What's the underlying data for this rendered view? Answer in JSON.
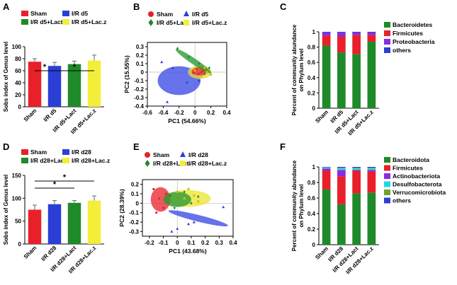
{
  "colors": {
    "red": "#e8202a",
    "blue": "#2b3fd6",
    "green": "#1f8a2a",
    "yellow": "#f2ee3a",
    "purple": "#8a2be2",
    "cyan": "#22d6e8",
    "lime": "#6aa62a",
    "ellipse_blue": "#4b5be6"
  },
  "chart_data": [
    {
      "panel": "A",
      "type": "bar",
      "ylabel": "Sobs index of Genus level",
      "ylim": [
        0,
        100
      ],
      "yticks": [
        0,
        20,
        40,
        60,
        80,
        100
      ],
      "categories": [
        "Sham",
        "I/R d5",
        "I/R d5+Lact",
        "I/R d5+Lac.z"
      ],
      "values": [
        75,
        68,
        71,
        77
      ],
      "errors": [
        5,
        6,
        5,
        9
      ],
      "legend": [
        "Sham",
        "I/R d5",
        "I/R d5+Lact",
        "I/R d5+Lac.z"
      ],
      "significance": [
        {
          "from": 0,
          "to": 1,
          "label": "*"
        },
        {
          "from": 1,
          "to": 3,
          "label": "*"
        }
      ]
    },
    {
      "panel": "B",
      "type": "scatter",
      "xlabel": "PC1 (54.66%)",
      "ylabel": "PC2 (15.55%)",
      "xlim": [
        -0.6,
        0.4
      ],
      "ylim": [
        -0.4,
        0.35
      ],
      "xticks": [
        -0.6,
        -0.4,
        -0.2,
        0,
        0.2,
        0.4
      ],
      "yticks": [
        -0.4,
        -0.3,
        -0.2,
        -0.1,
        0,
        0.1,
        0.2,
        0.3
      ],
      "legend": [
        "Sham",
        "I/R d5",
        "I/R d5+Lact",
        "I/R d5+Lac.z"
      ],
      "series": [
        {
          "name": "Sham",
          "points": [
            [
              0.02,
              0.03
            ],
            [
              0.05,
              -0.02
            ],
            [
              0.08,
              0.0
            ],
            [
              0.1,
              0.02
            ],
            [
              -0.02,
              -0.01
            ]
          ]
        },
        {
          "name": "I/R d5",
          "points": [
            [
              -0.42,
              0.12
            ],
            [
              -0.35,
              -0.35
            ],
            [
              -0.28,
              0.05
            ],
            [
              -0.1,
              -0.12
            ],
            [
              0.05,
              -0.1
            ]
          ]
        },
        {
          "name": "I/R d5+Lact",
          "points": [
            [
              -0.22,
              0.28
            ],
            [
              -0.08,
              0.18
            ],
            [
              0.05,
              0.1
            ],
            [
              0.12,
              -0.02
            ],
            [
              0.18,
              0.05
            ]
          ]
        },
        {
          "name": "I/R d5+Lac.z",
          "points": [
            [
              0.0,
              0.02
            ],
            [
              0.12,
              0.05
            ],
            [
              0.15,
              0.0
            ],
            [
              0.2,
              -0.03
            ],
            [
              0.08,
              -0.05
            ]
          ]
        }
      ]
    },
    {
      "panel": "C",
      "type": "bar",
      "stacked": true,
      "ylabel": "Percent of community abundance on Phylum level",
      "ylim": [
        0,
        1.0
      ],
      "yticks": [
        0.0,
        0.2,
        0.4,
        0.6,
        0.8,
        1.0
      ],
      "categories": [
        "Sham",
        "I/R d5",
        "I/R d5+Lact",
        "I/R d5+Lac.z"
      ],
      "series": [
        {
          "name": "Bacteroidetes",
          "values": [
            0.82,
            0.73,
            0.71,
            0.87
          ]
        },
        {
          "name": "Firmicutes",
          "values": [
            0.13,
            0.21,
            0.25,
            0.09
          ]
        },
        {
          "name": "Proteobacteria",
          "values": [
            0.04,
            0.05,
            0.03,
            0.03
          ]
        },
        {
          "name": "others",
          "values": [
            0.01,
            0.01,
            0.01,
            0.01
          ]
        }
      ]
    },
    {
      "panel": "D",
      "type": "bar",
      "ylabel": "Sobs index of Genus level",
      "ylim": [
        0,
        150
      ],
      "yticks": [
        0,
        50,
        100,
        150
      ],
      "categories": [
        "Sham",
        "I/R d28",
        "I/R d28+Lact",
        "I/R d28+Lac.z"
      ],
      "values": [
        75,
        87,
        90,
        95
      ],
      "errors": [
        10,
        8,
        5,
        10
      ],
      "legend": [
        "Sham",
        "I/R d28",
        "I/R d28+Lact",
        "I/R d28+Lac.z"
      ],
      "significance": [
        {
          "from": 0,
          "to": 2,
          "label": "*"
        },
        {
          "from": 0,
          "to": 3,
          "label": "*"
        }
      ]
    },
    {
      "panel": "E",
      "type": "scatter",
      "xlabel": "PC1 (43.68%)",
      "ylabel": "PC2 (28.39%)",
      "xlim": [
        -0.25,
        0.4
      ],
      "ylim": [
        -0.35,
        0.25
      ],
      "xticks": [
        -0.2,
        -0.1,
        0,
        0.1,
        0.2,
        0.3,
        0.4
      ],
      "yticks": [
        -0.3,
        -0.2,
        -0.1,
        0,
        0.1,
        0.2
      ],
      "legend": [
        "Sham",
        "I/R d28",
        "I/R d28+Lact",
        "I/R d28+Lac.z"
      ],
      "series": [
        {
          "name": "Sham",
          "points": [
            [
              -0.17,
              0.15
            ],
            [
              -0.13,
              0.05
            ],
            [
              -0.1,
              -0.05
            ],
            [
              -0.15,
              -0.1
            ],
            [
              -0.08,
              0.1
            ]
          ]
        },
        {
          "name": "I/R d28",
          "points": [
            [
              0.33,
              -0.04
            ],
            [
              0.08,
              -0.22
            ],
            [
              -0.04,
              -0.3
            ],
            [
              0.0,
              -0.27
            ],
            [
              0.12,
              -0.2
            ]
          ]
        },
        {
          "name": "I/R d28+Lact",
          "points": [
            [
              -0.05,
              0.08
            ],
            [
              0.05,
              0.12
            ],
            [
              0.1,
              0.0
            ],
            [
              -0.02,
              -0.05
            ],
            [
              0.15,
              0.07
            ]
          ]
        },
        {
          "name": "I/R d28+Lac.z",
          "points": [
            [
              0.0,
              0.12
            ],
            [
              0.08,
              0.15
            ],
            [
              0.12,
              0.08
            ],
            [
              0.15,
              0.02
            ],
            [
              0.05,
              0.05
            ]
          ]
        }
      ]
    },
    {
      "panel": "F",
      "type": "bar",
      "stacked": true,
      "ylabel": "Percent of community abundance on Phylum level",
      "ylim": [
        0,
        1.0
      ],
      "yticks": [
        0.0,
        0.2,
        0.4,
        0.6,
        0.8,
        1.0
      ],
      "categories": [
        "Sham",
        "I/R d28",
        "I/R d28+Lact",
        "I/R d28+Lac.z"
      ],
      "series": [
        {
          "name": "Bacteroidota",
          "values": [
            0.71,
            0.52,
            0.66,
            0.67
          ]
        },
        {
          "name": "Firmicutes",
          "values": [
            0.24,
            0.36,
            0.29,
            0.27
          ]
        },
        {
          "name": "Actinobacteriota",
          "values": [
            0.03,
            0.08,
            0.01,
            0.02
          ]
        },
        {
          "name": "Desulfobacterota",
          "values": [
            0.01,
            0.02,
            0.02,
            0.02
          ]
        },
        {
          "name": "Verrucomicrobiota",
          "values": [
            0.005,
            0.01,
            0.01,
            0.01
          ]
        },
        {
          "name": "others",
          "values": [
            0.005,
            0.01,
            0.01,
            0.01
          ]
        }
      ]
    }
  ]
}
